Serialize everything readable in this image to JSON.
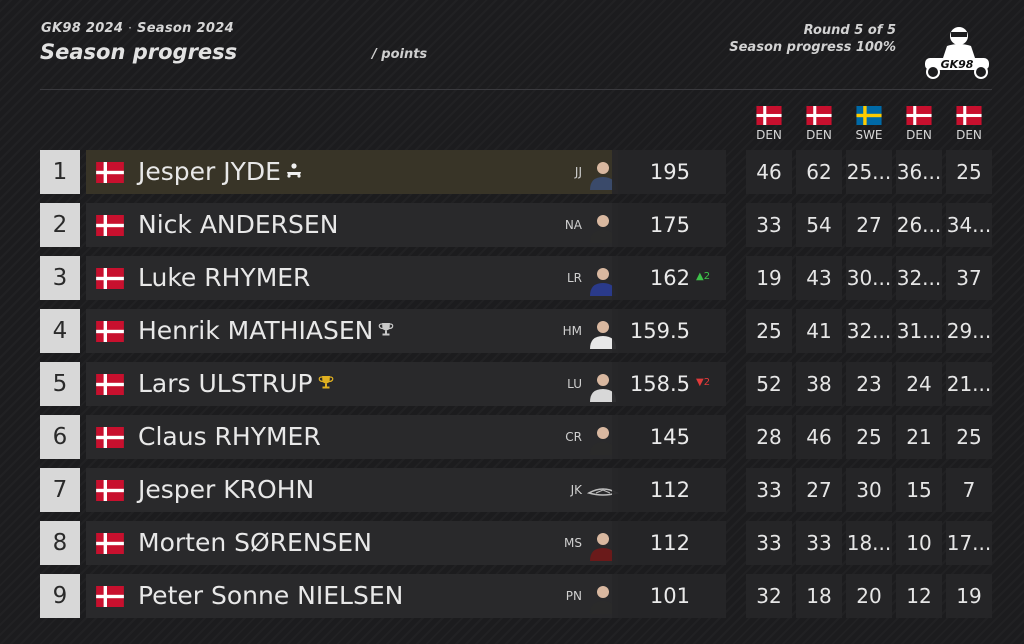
{
  "header": {
    "league": "GK98 2024",
    "separator": "·",
    "season": "Season 2024",
    "title": "Season progress",
    "unit": "/ points",
    "round": "Round 5 of 5",
    "progress": "Season progress 100%",
    "progress_value": 100,
    "logo_text": "GK98"
  },
  "columns": [
    {
      "code": "DEN",
      "flag": "denmark"
    },
    {
      "code": "DEN",
      "flag": "denmark"
    },
    {
      "code": "SWE",
      "flag": "sweden"
    },
    {
      "code": "DEN",
      "flag": "denmark"
    },
    {
      "code": "DEN",
      "flag": "denmark"
    }
  ],
  "drivers": [
    {
      "pos": "1",
      "name": "Jesper JYDE",
      "badge": "kart-icon",
      "abbr": "JJ",
      "total": "195",
      "change": "",
      "change_dir": "",
      "rounds": [
        "46",
        "62",
        "25...",
        "36...",
        "25"
      ]
    },
    {
      "pos": "2",
      "name": "Nick ANDERSEN",
      "badge": "",
      "abbr": "NA",
      "total": "175",
      "change": "",
      "change_dir": "",
      "rounds": [
        "33",
        "54",
        "27",
        "26...",
        "34..."
      ]
    },
    {
      "pos": "3",
      "name": "Luke RHYMER",
      "badge": "",
      "abbr": "LR",
      "total": "162",
      "change": "▲2",
      "change_dir": "up",
      "rounds": [
        "19",
        "43",
        "30...",
        "32...",
        "37"
      ]
    },
    {
      "pos": "4",
      "name": "Henrik MATHIASEN",
      "badge": "trophy-silver-icon",
      "abbr": "HM",
      "total": "159.5",
      "change": "",
      "change_dir": "",
      "rounds": [
        "25",
        "41",
        "32...",
        "31...",
        "29..."
      ]
    },
    {
      "pos": "5",
      "name": "Lars ULSTRUP",
      "badge": "trophy-gold-icon",
      "abbr": "LU",
      "total": "158.5",
      "change": "▼2",
      "change_dir": "down",
      "rounds": [
        "52",
        "38",
        "23",
        "24",
        "21..."
      ]
    },
    {
      "pos": "6",
      "name": "Claus RHYMER",
      "badge": "",
      "abbr": "CR",
      "total": "145",
      "change": "",
      "change_dir": "",
      "rounds": [
        "28",
        "46",
        "25",
        "21",
        "25"
      ]
    },
    {
      "pos": "7",
      "name": "Jesper KROHN",
      "badge": "",
      "abbr": "JK",
      "total": "112",
      "change": "",
      "change_dir": "",
      "rounds": [
        "33",
        "27",
        "30",
        "15",
        "7"
      ]
    },
    {
      "pos": "8",
      "name": "Morten SØRENSEN",
      "badge": "",
      "abbr": "MS",
      "total": "112",
      "change": "",
      "change_dir": "",
      "rounds": [
        "33",
        "33",
        "18...",
        "10",
        "17..."
      ]
    },
    {
      "pos": "9",
      "name": "Peter Sonne NIELSEN",
      "badge": "",
      "abbr": "PN",
      "total": "101",
      "change": "",
      "change_dir": "",
      "rounds": [
        "32",
        "18",
        "20",
        "12",
        "19"
      ]
    }
  ],
  "colors": {
    "denmark_red": "#c8102e",
    "sweden_blue": "#006aa7",
    "sweden_yellow": "#fecc00",
    "up": "#3ec24a",
    "down": "#e03a3a",
    "gold": "#e0b020",
    "silver": "#c8c8c8"
  }
}
